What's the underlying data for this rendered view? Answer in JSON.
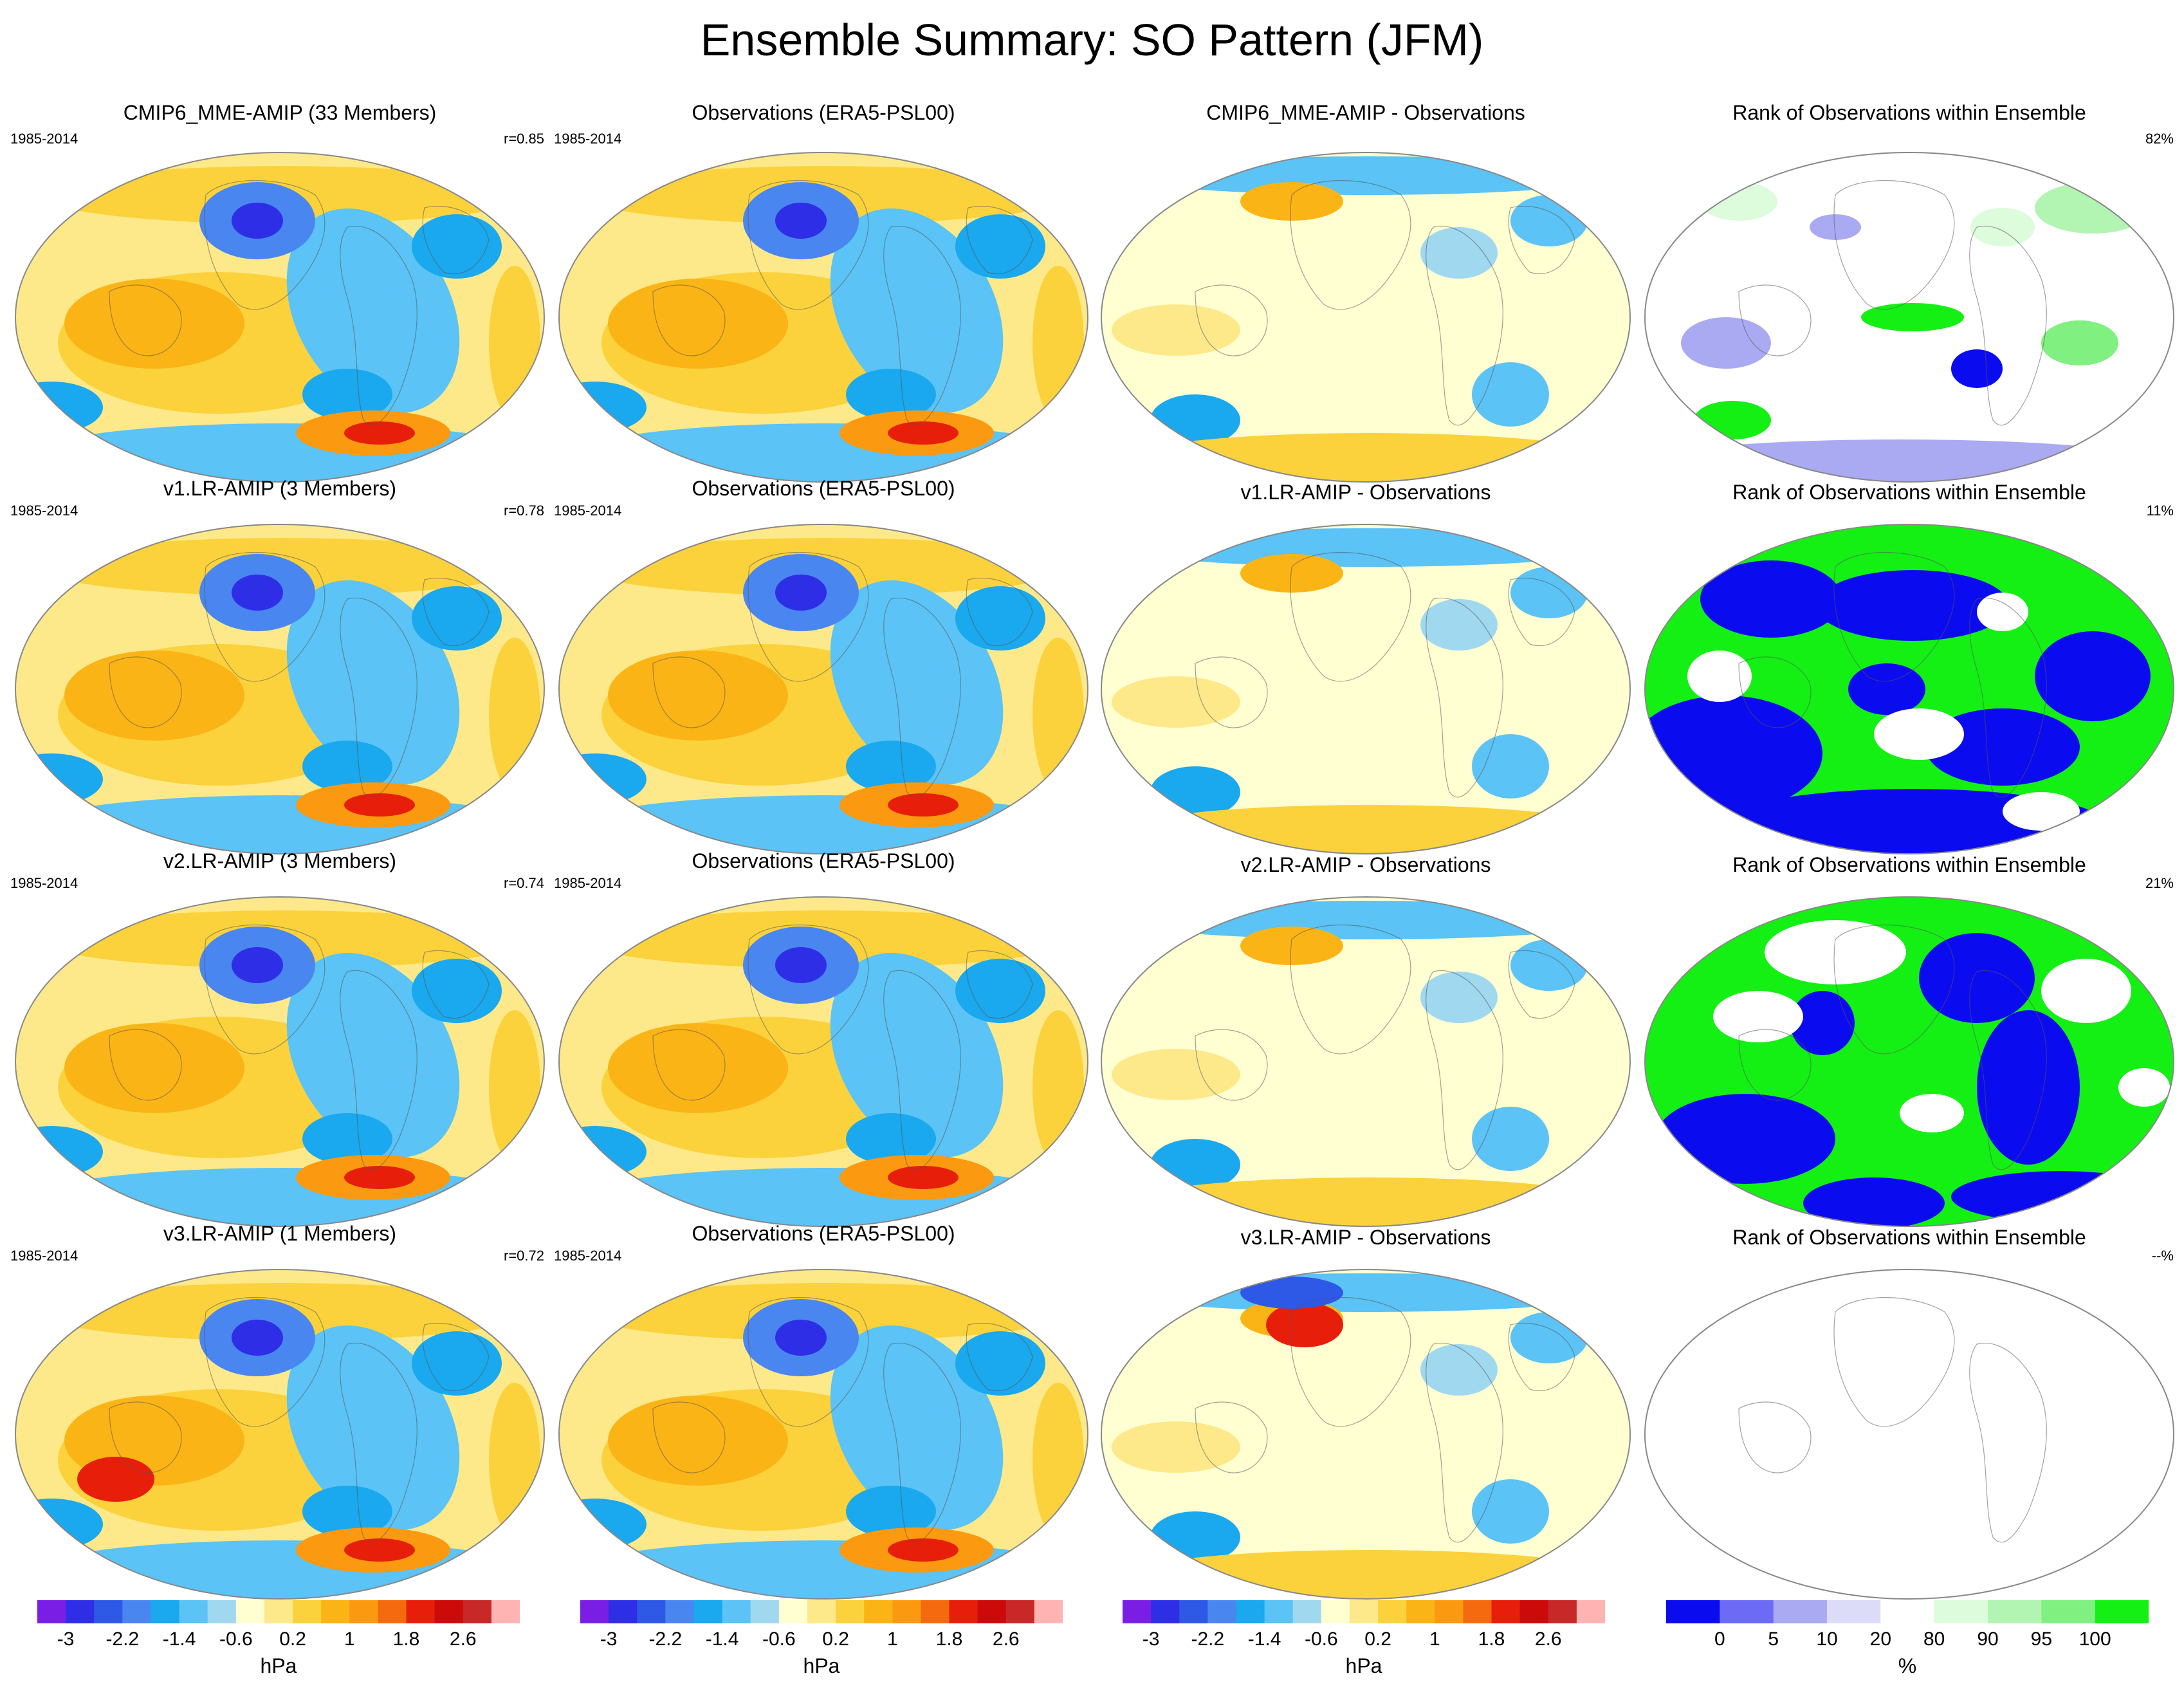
{
  "title": "Ensemble Summary: SO Pattern (JFM)",
  "colors": {
    "anomaly_scale": [
      "#7a1ee6",
      "#2e2ee6",
      "#2e58e6",
      "#4a86f0",
      "#1aa8ee",
      "#5bc3f5",
      "#a0d8f0",
      "#ffffd2",
      "#fee98a",
      "#fbd23c",
      "#fbb416",
      "#fb9a10",
      "#f56a0e",
      "#e61e0a",
      "#cc0a0a",
      "#c82828",
      "#ffb4b4"
    ],
    "rank_scale": [
      "#0b0bf0",
      "#6b6bf5",
      "#aaaaf2",
      "#dcdcf8",
      "#ffffff",
      "#dcfcdc",
      "#b2f5b2",
      "#80f080",
      "#14f014"
    ]
  },
  "rows": [
    {
      "model_title": "CMIP6_MME-AMIP (33 Members)",
      "model_period": "1985-2014",
      "model_r": "r=0.85",
      "obs_title": "Observations (ERA5-PSL00)",
      "obs_period": "1985-2014",
      "diff_title": "CMIP6_MME-AMIP - Observations",
      "rank_title": "Rank of Observations within Ensemble",
      "rank_pct": "82%",
      "rank_pattern": "mostly-white"
    },
    {
      "model_title": "v1.LR-AMIP (3 Members)",
      "model_period": "1985-2014",
      "model_r": "r=0.78",
      "obs_title": "Observations (ERA5-PSL00)",
      "obs_period": "1985-2014",
      "diff_title": "v1.LR-AMIP - Observations",
      "rank_title": "Rank of Observations within Ensemble",
      "rank_pct": "11%",
      "rank_pattern": "blue-green"
    },
    {
      "model_title": "v2.LR-AMIP (3 Members)",
      "model_period": "1985-2014",
      "model_r": "r=0.74",
      "obs_title": "Observations (ERA5-PSL00)",
      "obs_period": "1985-2014",
      "diff_title": "v2.LR-AMIP - Observations",
      "rank_title": "Rank of Observations within Ensemble",
      "rank_pct": "21%",
      "rank_pattern": "green-blue"
    },
    {
      "model_title": "v3.LR-AMIP (1 Members)",
      "model_period": "1985-2014",
      "model_r": "r=0.72",
      "obs_title": "Observations (ERA5-PSL00)",
      "obs_period": "1985-2014",
      "diff_title": "v3.LR-AMIP - Observations",
      "rank_title": "Rank of Observations within Ensemble",
      "rank_pct": "--%",
      "rank_pattern": "empty"
    }
  ],
  "colorbars": {
    "anomaly_ticks": [
      "-3",
      "-2.2",
      "-1.4",
      "-0.6",
      "0.2",
      "1",
      "1.8",
      "2.6"
    ],
    "anomaly_unit": "hPa",
    "rank_ticks": [
      "0",
      "5",
      "10",
      "20",
      "80",
      "90",
      "95",
      "100"
    ],
    "rank_unit": "%"
  }
}
